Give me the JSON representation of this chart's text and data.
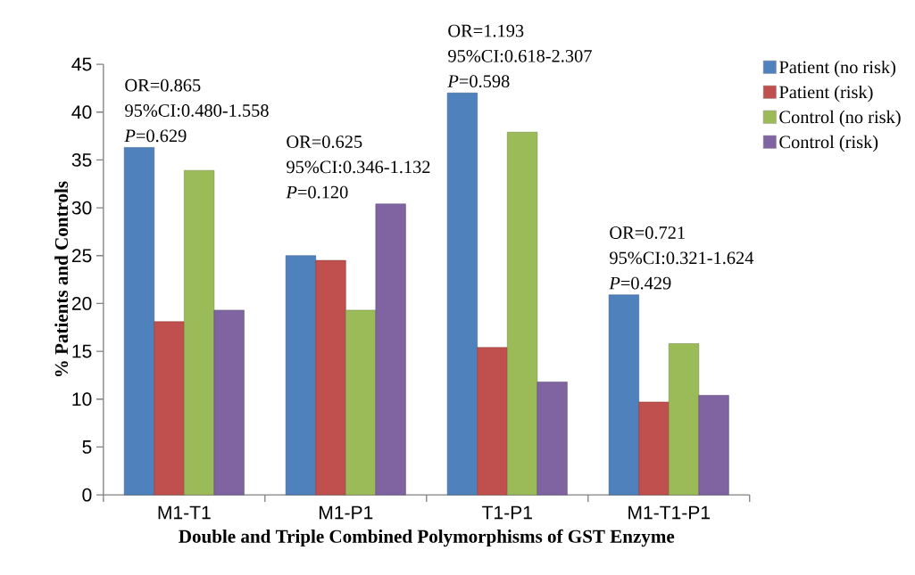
{
  "chart_data": {
    "type": "bar",
    "xlabel": "Double and Triple Combined Polymorphisms of GST Enzyme",
    "ylabel": "% Patients and Controls",
    "categories": [
      "M1-T1",
      "M1-P1",
      "T1-P1",
      "M1-T1-P1"
    ],
    "series": [
      {
        "name": "Patient (no risk)",
        "color": "#4f81bd",
        "values": [
          36.3,
          25.0,
          42.0,
          20.9
        ]
      },
      {
        "name": "Patient (risk)",
        "color": "#c0504d",
        "values": [
          18.1,
          24.5,
          15.4,
          9.7
        ]
      },
      {
        "name": "Control (no risk)",
        "color": "#9bbb59",
        "values": [
          33.9,
          19.3,
          37.9,
          15.8
        ]
      },
      {
        "name": "Control (risk)",
        "color": "#8064a2",
        "values": [
          19.3,
          30.4,
          11.8,
          10.4
        ]
      }
    ],
    "ylim": [
      0,
      45
    ],
    "yticks": [
      0,
      5,
      10,
      15,
      20,
      25,
      30,
      35,
      40,
      45
    ],
    "grid": false,
    "legend": "right",
    "annotations": [
      "OR=0.865",
      "95%CI:0.480-1.558",
      "*P*=0.629",
      "OR=0.625",
      "95%CI:0.346-1.132",
      "*P*=0.120",
      "OR=1.193",
      "95%CI:0.618-2.307",
      "*P*=0.598",
      "OR=0.721",
      "95%CI:0.321-1.624",
      "*P*=0.429"
    ]
  }
}
